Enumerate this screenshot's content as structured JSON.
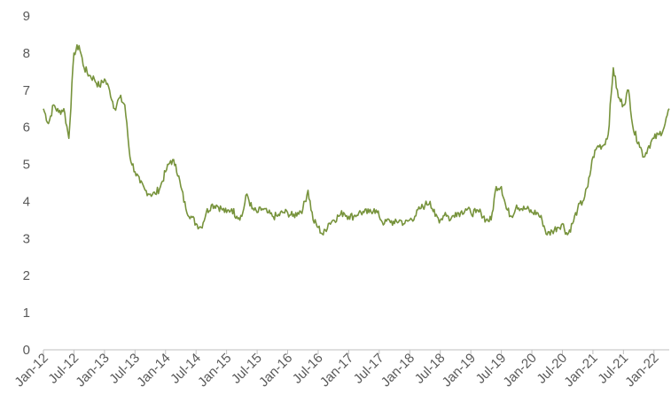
{
  "chart_data": {
    "type": "line",
    "title": "",
    "xlabel": "",
    "ylabel": "",
    "ylim": [
      0,
      9
    ],
    "y_ticks": [
      0,
      1,
      2,
      3,
      4,
      5,
      6,
      7,
      8,
      9
    ],
    "x_ticks": [
      "Jan-12",
      "Jul-12",
      "Jan-13",
      "Jul-13",
      "Jan-14",
      "Jul-14",
      "Jan-15",
      "Jul-15",
      "Jan-16",
      "Jul-16",
      "Jan-17",
      "Jul-17",
      "Jan-18",
      "Jul-18",
      "Jan-19",
      "Jul-19",
      "Jan-20",
      "Jul-20",
      "Jan-21",
      "Jul-21",
      "Jan-22"
    ],
    "grid": false,
    "legend": "none",
    "series": [
      {
        "color": "#77933c",
        "x": [
          "2012-01",
          "2012-02",
          "2012-03",
          "2012-04",
          "2012-05",
          "2012-06",
          "2012-07",
          "2012-08",
          "2012-09",
          "2012-10",
          "2012-11",
          "2012-12",
          "2013-01",
          "2013-02",
          "2013-03",
          "2013-04",
          "2013-05",
          "2013-06",
          "2013-07",
          "2013-08",
          "2013-09",
          "2013-10",
          "2013-11",
          "2013-12",
          "2014-01",
          "2014-02",
          "2014-03",
          "2014-04",
          "2014-05",
          "2014-06",
          "2014-07",
          "2014-08",
          "2014-09",
          "2014-10",
          "2014-11",
          "2014-12",
          "2015-01",
          "2015-02",
          "2015-03",
          "2015-04",
          "2015-05",
          "2015-06",
          "2015-07",
          "2015-08",
          "2015-09",
          "2015-10",
          "2015-11",
          "2015-12",
          "2016-01",
          "2016-02",
          "2016-03",
          "2016-04",
          "2016-05",
          "2016-06",
          "2016-07",
          "2016-08",
          "2016-09",
          "2016-10",
          "2016-11",
          "2016-12",
          "2017-01",
          "2017-02",
          "2017-03",
          "2017-04",
          "2017-05",
          "2017-06",
          "2017-07",
          "2017-08",
          "2017-09",
          "2017-10",
          "2017-11",
          "2017-12",
          "2018-01",
          "2018-02",
          "2018-03",
          "2018-04",
          "2018-05",
          "2018-06",
          "2018-07",
          "2018-08",
          "2018-09",
          "2018-10",
          "2018-11",
          "2018-12",
          "2019-01",
          "2019-02",
          "2019-03",
          "2019-04",
          "2019-05",
          "2019-06",
          "2019-07",
          "2019-08",
          "2019-09",
          "2019-10",
          "2019-11",
          "2019-12",
          "2020-01",
          "2020-02",
          "2020-03",
          "2020-04",
          "2020-05",
          "2020-06",
          "2020-07",
          "2020-08",
          "2020-09",
          "2020-10",
          "2020-11",
          "2020-12",
          "2021-01",
          "2021-02",
          "2021-03",
          "2021-04",
          "2021-05",
          "2021-06",
          "2021-07",
          "2021-08",
          "2021-09",
          "2021-10",
          "2021-11",
          "2021-12",
          "2022-01",
          "2022-02",
          "2022-03",
          "2022-04"
        ],
        "y": [
          6.5,
          6.1,
          6.6,
          6.4,
          6.5,
          5.7,
          8.0,
          8.2,
          7.6,
          7.4,
          7.3,
          7.1,
          7.3,
          7.0,
          6.5,
          6.8,
          6.6,
          5.2,
          4.8,
          4.5,
          4.3,
          4.2,
          4.2,
          4.4,
          4.8,
          5.1,
          5.0,
          4.4,
          3.8,
          3.6,
          3.4,
          3.3,
          3.7,
          3.9,
          3.9,
          3.8,
          3.7,
          3.8,
          3.6,
          3.6,
          4.2,
          3.8,
          3.7,
          3.8,
          3.7,
          3.6,
          3.6,
          3.7,
          3.7,
          3.6,
          3.7,
          3.8,
          4.3,
          3.5,
          3.3,
          3.1,
          3.4,
          3.5,
          3.6,
          3.7,
          3.6,
          3.6,
          3.7,
          3.7,
          3.7,
          3.8,
          3.6,
          3.4,
          3.5,
          3.4,
          3.5,
          3.4,
          3.5,
          3.6,
          3.8,
          3.9,
          4.0,
          3.6,
          3.5,
          3.7,
          3.5,
          3.7,
          3.7,
          3.8,
          3.7,
          3.7,
          3.7,
          3.5,
          3.5,
          4.4,
          4.4,
          3.8,
          3.6,
          3.9,
          3.8,
          3.8,
          3.7,
          3.7,
          3.5,
          3.1,
          3.2,
          3.3,
          3.4,
          3.1,
          3.4,
          3.8,
          4.0,
          4.4,
          5.2,
          5.5,
          5.5,
          5.8,
          7.6,
          6.8,
          6.6,
          7.0,
          5.9,
          5.6,
          5.2,
          5.5,
          5.7,
          5.8,
          6.0,
          6.5
        ]
      }
    ]
  }
}
